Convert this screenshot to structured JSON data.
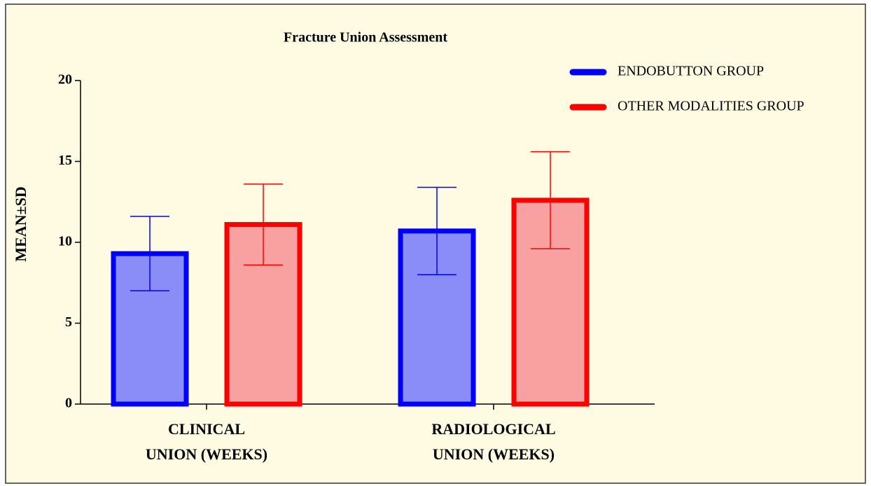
{
  "chart_data": {
    "type": "bar",
    "title": "Fracture Union Assessment",
    "y_label": "MEAN±SD",
    "categories": [
      [
        "CLINICAL",
        "UNION (WEEKS)"
      ],
      [
        "RADIOLOGICAL",
        "UNION (WEEKS)"
      ]
    ],
    "series": [
      {
        "name": "ENDOBUTTON GROUP",
        "color": "#0000ff",
        "fill": "#8a8cf8",
        "values": [
          9.3,
          10.7
        ],
        "errors": [
          2.3,
          2.7
        ]
      },
      {
        "name": "OTHER MODALITIES GROUP",
        "color": "#ff0000",
        "fill": "#f9a0a0",
        "values": [
          11.1,
          12.6
        ],
        "errors": [
          2.5,
          3.0
        ]
      }
    ],
    "ylim": [
      0,
      20
    ],
    "yticks": [
      0,
      5,
      10,
      15,
      20
    ],
    "grid": false,
    "legend": "top-right"
  }
}
